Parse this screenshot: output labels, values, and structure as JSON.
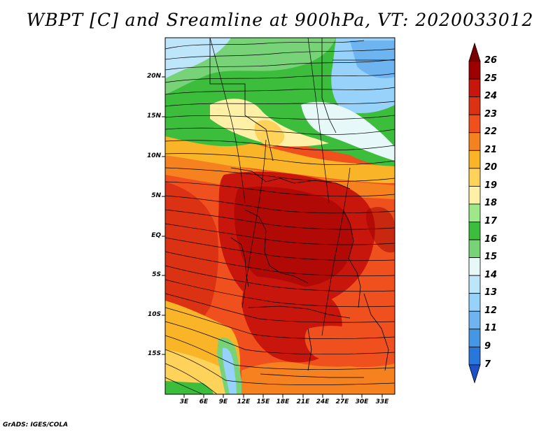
{
  "title": "WBPT [C] and Sreamline at 900hPa, VT: 2020033012",
  "credit": "GrADS: IGES/COLA",
  "map": {
    "lat_labels": [
      "20N",
      "15N",
      "10N",
      "5N",
      "EQ",
      "5S",
      "10S",
      "15S"
    ],
    "lon_labels": [
      "3E",
      "6E",
      "9E",
      "12E",
      "15E",
      "18E",
      "21E",
      "24E",
      "27E",
      "30E",
      "33E"
    ],
    "field": "WBPT",
    "units": "C",
    "level": "900hPa",
    "streamlines": true
  },
  "colorbar": {
    "labels": [
      "26",
      "25",
      "24",
      "23",
      "22",
      "21",
      "20",
      "19",
      "18",
      "17",
      "16",
      "15",
      "14",
      "13",
      "12",
      "11",
      "9",
      "7"
    ],
    "colors": [
      "#9e0000",
      "#c8160d",
      "#dc3214",
      "#f0501e",
      "#f5821e",
      "#fab428",
      "#ffd25a",
      "#fff0a8",
      "#9ee88a",
      "#3cbe3c",
      "#78d278",
      "#e6f8f8",
      "#bee6fa",
      "#96d2fa",
      "#6eb4f0",
      "#4696e6",
      "#2878dc",
      "#1e50c8"
    ]
  }
}
